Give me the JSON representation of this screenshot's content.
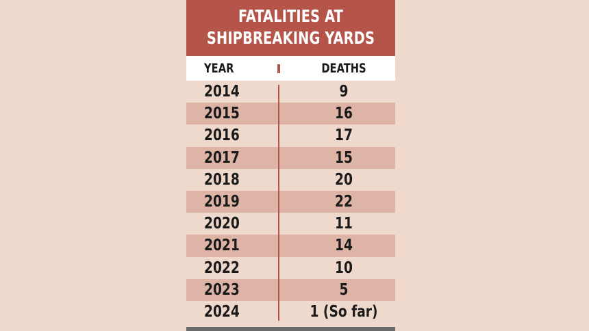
{
  "chart_data": {
    "type": "table",
    "title_lines": [
      "FATALITIES AT",
      "SHIPBREAKING YARDS"
    ],
    "columns": [
      "YEAR",
      "DEATHS"
    ],
    "rows": [
      {
        "year": "2014",
        "deaths": "9"
      },
      {
        "year": "2015",
        "deaths": "16"
      },
      {
        "year": "2016",
        "deaths": "17"
      },
      {
        "year": "2017",
        "deaths": "15"
      },
      {
        "year": "2018",
        "deaths": "20"
      },
      {
        "year": "2019",
        "deaths": "22"
      },
      {
        "year": "2020",
        "deaths": "11"
      },
      {
        "year": "2021",
        "deaths": "14"
      },
      {
        "year": "2022",
        "deaths": "10"
      },
      {
        "year": "2023",
        "deaths": "5"
      },
      {
        "year": "2024",
        "deaths": "1 (So far)"
      }
    ]
  },
  "colors": {
    "background": "#efd9cc",
    "title_bar": "#b5554a",
    "header_row": "#ffffff",
    "row_shade": "#deb4a6",
    "divider": "#b5554a",
    "text": "#1a1a1a",
    "footer_bar": "#6b6b6b"
  }
}
